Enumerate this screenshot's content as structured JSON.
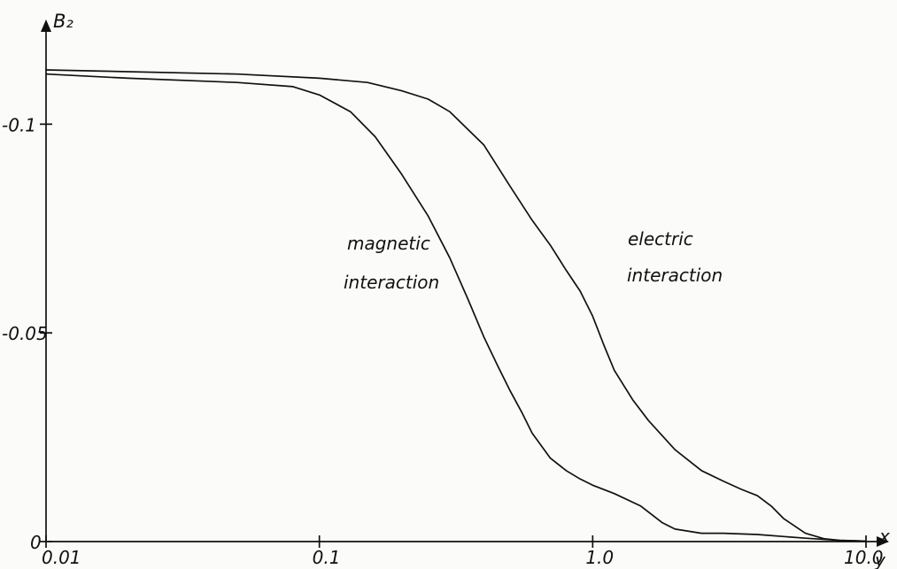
{
  "chart_data": {
    "type": "line",
    "title": "",
    "xlabel": "x\ny",
    "ylabel": "B₂",
    "x_scale": "log",
    "xlim": [
      0.01,
      10.0
    ],
    "ylim": [
      0,
      -0.12
    ],
    "y_axis_inverted_magnitude": true,
    "grid": false,
    "legend": "none",
    "x_ticks": [
      0.01,
      0.1,
      1.0,
      10.0
    ],
    "x_tick_labels": [
      "0.01",
      "0.1",
      "1.0",
      "10.0"
    ],
    "y_ticks": [
      0,
      -0.05,
      -0.1
    ],
    "y_tick_labels": [
      "0",
      "-0.05",
      "-0.1"
    ],
    "annotations": [
      {
        "lines": [
          "magnetic",
          "interaction"
        ]
      },
      {
        "lines": [
          "electric",
          "interaction"
        ]
      }
    ],
    "series": [
      {
        "x": [
          0.01,
          0.02,
          0.05,
          0.08,
          0.1,
          0.13,
          0.16,
          0.2,
          0.25,
          0.3,
          0.35,
          0.4,
          0.45,
          0.5,
          0.55,
          0.6,
          0.7,
          0.8,
          0.9,
          1.0,
          1.2,
          1.5,
          1.8,
          2.0,
          2.5,
          3.0,
          4.0,
          6.0,
          8.0,
          10.0
        ],
        "y": [
          -0.112,
          -0.111,
          -0.11,
          -0.109,
          -0.107,
          -0.103,
          -0.097,
          -0.088,
          -0.078,
          -0.068,
          -0.058,
          -0.049,
          -0.042,
          -0.036,
          -0.031,
          -0.026,
          -0.02,
          -0.017,
          -0.015,
          -0.0135,
          -0.0115,
          -0.0085,
          -0.0045,
          -0.003,
          -0.002,
          -0.002,
          -0.0017,
          -0.0008,
          -0.0003,
          -0.0001
        ]
      },
      {
        "x": [
          0.01,
          0.05,
          0.1,
          0.15,
          0.2,
          0.25,
          0.3,
          0.4,
          0.5,
          0.6,
          0.7,
          0.8,
          0.9,
          1.0,
          1.1,
          1.2,
          1.4,
          1.6,
          2.0,
          2.5,
          3.0,
          3.5,
          4.0,
          4.5,
          5.0,
          6.0,
          7.0,
          8.0,
          10.0
        ],
        "y": [
          -0.113,
          -0.112,
          -0.111,
          -0.11,
          -0.108,
          -0.106,
          -0.103,
          -0.095,
          -0.085,
          -0.077,
          -0.071,
          -0.065,
          -0.06,
          -0.054,
          -0.047,
          -0.041,
          -0.034,
          -0.029,
          -0.022,
          -0.017,
          -0.0145,
          -0.0125,
          -0.011,
          -0.0085,
          -0.0055,
          -0.002,
          -0.0007,
          -0.0003,
          -0.0001
        ]
      }
    ]
  }
}
